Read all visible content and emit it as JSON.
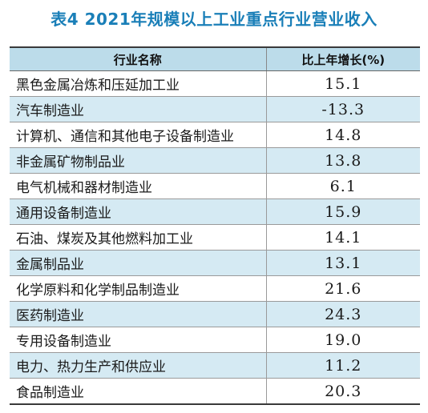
{
  "title": "表4 2021年规模以上工业重点行业营业收入",
  "colors": {
    "title": "#1a7fb8",
    "header_bg": "#bcdcea",
    "row_shade": "#d5eaf3"
  },
  "table": {
    "headers": [
      "行业名称",
      "比上年增长(%)"
    ],
    "rows": [
      {
        "name": "黑色金属冶炼和压延加工业",
        "growth": "15.1"
      },
      {
        "name": "汽车制造业",
        "growth": "-13.3"
      },
      {
        "name": "计算机、通信和其他电子设备制造业",
        "growth": "14.8"
      },
      {
        "name": "非金属矿物制品业",
        "growth": "13.8"
      },
      {
        "name": "电气机械和器材制造业",
        "growth": "6.1"
      },
      {
        "name": "通用设备制造业",
        "growth": "15.9"
      },
      {
        "name": "石油、煤炭及其他燃料加工业",
        "growth": "14.1"
      },
      {
        "name": "金属制品业",
        "growth": "13.1"
      },
      {
        "name": "化学原料和化学制品制造业",
        "growth": "21.6"
      },
      {
        "name": "医药制造业",
        "growth": "24.3"
      },
      {
        "name": "专用设备制造业",
        "growth": "19.0"
      },
      {
        "name": "电力、热力生产和供应业",
        "growth": "11.2"
      },
      {
        "name": "食品制造业",
        "growth": "20.3"
      }
    ]
  }
}
